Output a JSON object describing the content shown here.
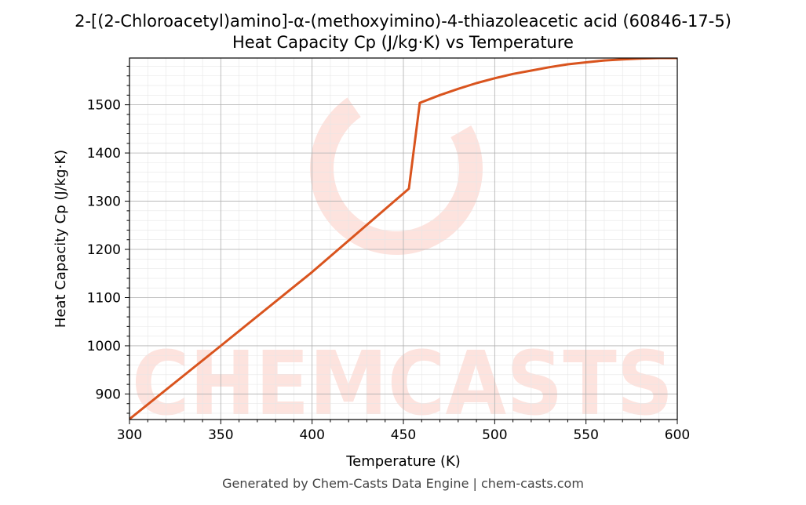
{
  "title_line1": "2-[(2-Chloroacetyl)amino]-α-(methoxyimino)-4-thiazoleacetic acid (60846-17-5)",
  "title_line2": "Heat Capacity Cp (J/kg·K) vs Temperature",
  "footer": "Generated by Chem-Casts Data Engine | chem-casts.com",
  "watermark": "CHEMCASTS",
  "colors": {
    "line": "#d9541e",
    "watermark": "#fde3de",
    "grid_major": "#b0b0b0",
    "grid_minor": "#e6e6e6"
  },
  "chart_data": {
    "type": "line",
    "title": "Heat Capacity Cp (J/kg·K) vs Temperature",
    "xlabel": "Temperature (K)",
    "ylabel": "Heat Capacity Cp (J/kg·K)",
    "xlim": [
      300,
      600
    ],
    "ylim": [
      847,
      1597
    ],
    "xticks": [
      300,
      350,
      400,
      450,
      500,
      550,
      600
    ],
    "yticks": [
      900,
      1000,
      1100,
      1200,
      1300,
      1400,
      1500
    ],
    "grid": true,
    "series": [
      {
        "x": [
          300,
          350,
          400,
          453,
          459,
          470,
          480,
          490,
          500,
          510,
          520,
          530,
          540,
          550,
          560,
          570,
          580,
          590,
          600
        ],
        "y": [
          848,
          1000,
          1153,
          1326,
          1504,
          1520,
          1533,
          1545,
          1555,
          1564,
          1571,
          1578,
          1584,
          1588,
          1592,
          1594,
          1596,
          1597,
          1597
        ]
      }
    ]
  }
}
